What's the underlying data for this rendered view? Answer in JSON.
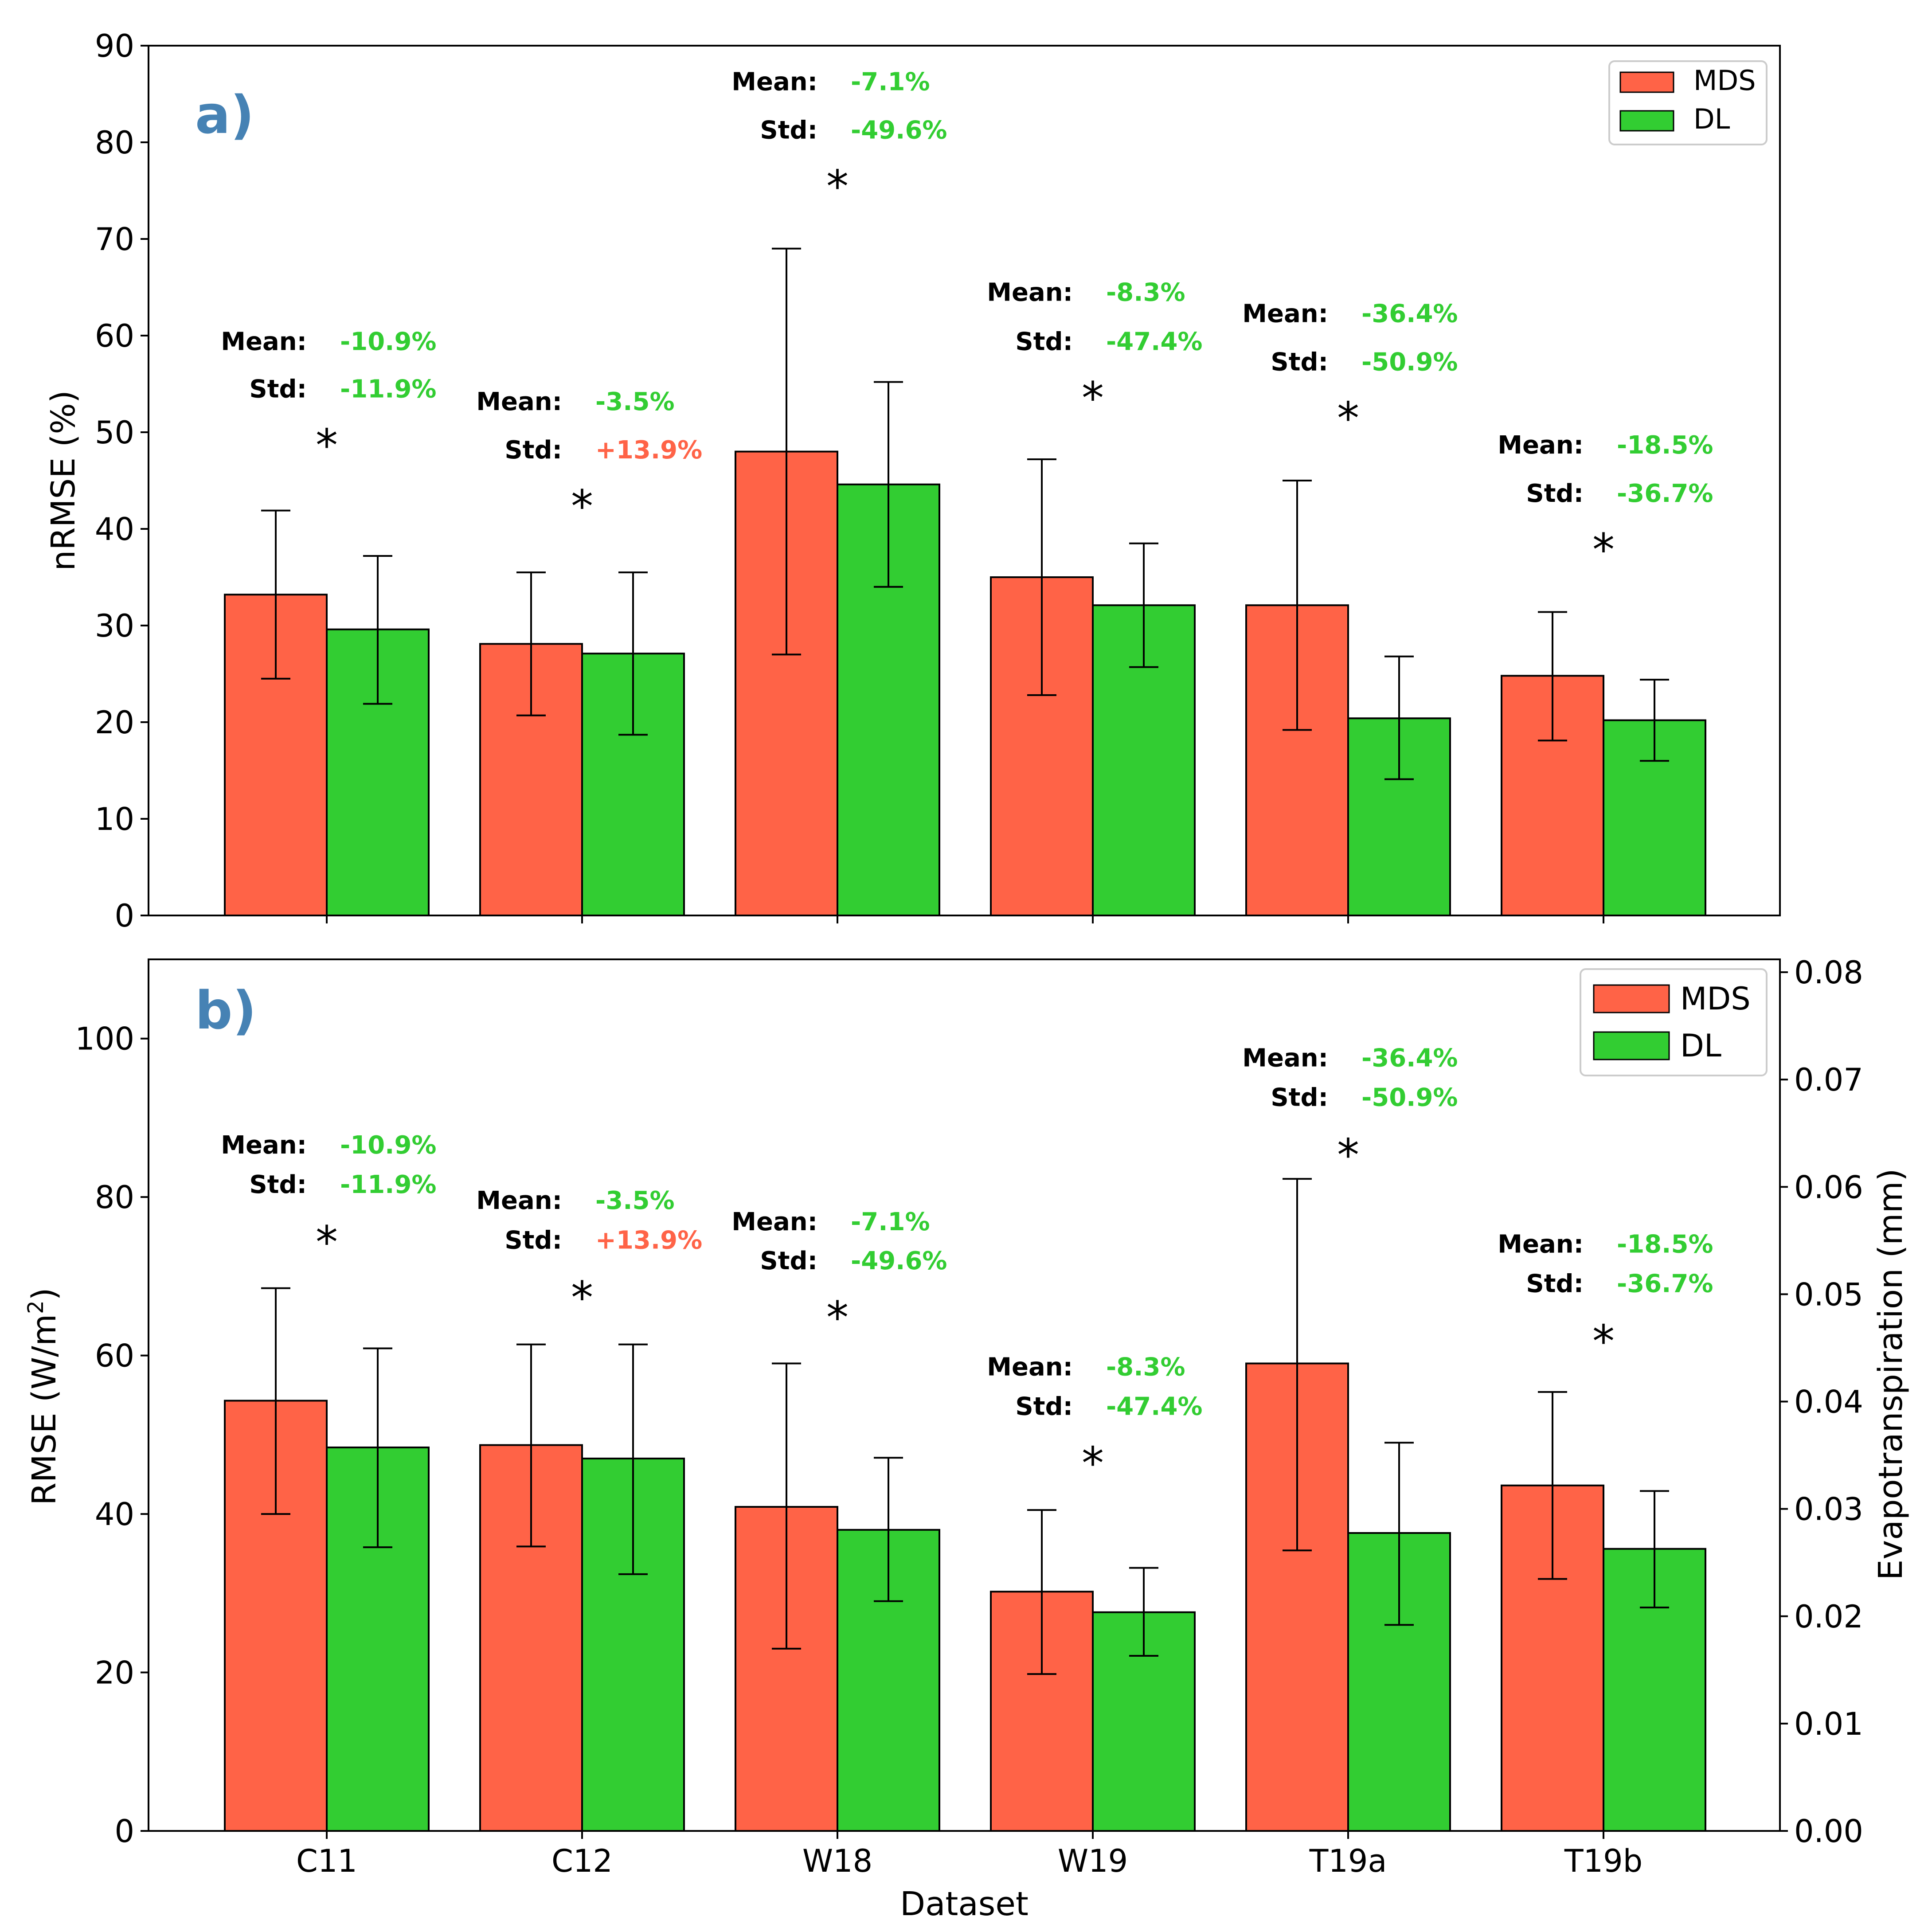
{
  "colors": {
    "mds": "#ff6347",
    "dl": "#32cd32",
    "panel_letter": "#4682b4",
    "neg": "#32cd32",
    "pos": "#ff6347"
  },
  "chart_data": [
    {
      "type": "bar",
      "panel": "a)",
      "categories": [
        "C11",
        "C12",
        "W18",
        "W19",
        "T19a",
        "T19b"
      ],
      "ylabel": "nRMSE (%)",
      "ylim": [
        0,
        90
      ],
      "yticks": [
        0,
        10,
        20,
        30,
        40,
        50,
        60,
        70,
        80,
        90
      ],
      "series": [
        {
          "name": "MDS",
          "values": [
            33.2,
            28.1,
            48.0,
            35.0,
            32.1,
            24.8
          ],
          "err_low": [
            24.5,
            20.7,
            27.0,
            22.8,
            19.2,
            18.1
          ],
          "err_high": [
            41.9,
            35.5,
            69.0,
            47.2,
            45.0,
            31.4
          ]
        },
        {
          "name": "DL",
          "values": [
            29.6,
            27.1,
            44.6,
            32.1,
            20.4,
            20.2
          ],
          "err_low": [
            21.9,
            18.7,
            34.0,
            25.7,
            14.1,
            16.0
          ],
          "err_high": [
            37.2,
            35.5,
            55.2,
            38.5,
            26.8,
            24.4
          ]
        }
      ],
      "annotations": [
        {
          "mean_label": "Mean:",
          "mean_value": "-10.9%",
          "std_label": "Std:",
          "std_value": "-11.9%",
          "star": "*",
          "std_sign": "neg",
          "y_mean": 58.5,
          "y_std": 53.6,
          "y_star": 48.8
        },
        {
          "mean_label": "Mean:",
          "mean_value": "-3.5%",
          "std_label": "Std:",
          "std_value": "+13.9%",
          "star": "*",
          "std_sign": "pos",
          "y_mean": 52.3,
          "y_std": 47.3,
          "y_star": 42.5
        },
        {
          "mean_label": "Mean:",
          "mean_value": "-7.1%",
          "std_label": "Std:",
          "std_value": "-49.6%",
          "star": "*",
          "std_sign": "neg",
          "y_mean": 85.4,
          "y_std": 80.4,
          "y_star": 75.6
        },
        {
          "mean_label": "Mean:",
          "mean_value": "-8.3%",
          "std_label": "Std:",
          "std_value": "-47.4%",
          "star": "*",
          "std_sign": "neg",
          "y_mean": 63.6,
          "y_std": 58.5,
          "y_star": 53.7
        },
        {
          "mean_label": "Mean:",
          "mean_value": "-36.4%",
          "std_label": "Std:",
          "std_value": "-50.9%",
          "star": "*",
          "std_sign": "neg",
          "y_mean": 61.4,
          "y_std": 56.4,
          "y_star": 51.6
        },
        {
          "mean_label": "Mean:",
          "mean_value": "-18.5%",
          "std_label": "Std:",
          "std_value": "-36.7%",
          "star": "*",
          "std_sign": "neg",
          "y_mean": 47.8,
          "y_std": 42.8,
          "y_star": 38.0
        }
      ],
      "legend": [
        "MDS",
        "DL"
      ],
      "legend_position": "top-right"
    },
    {
      "type": "bar",
      "panel": "b)",
      "categories": [
        "C11",
        "C12",
        "W18",
        "W19",
        "T19a",
        "T19b"
      ],
      "xlabel": "Dataset",
      "ylabel": "RMSE (W/m²)",
      "ylabel_main": "RMSE (W/m",
      "ylabel_sup": "2",
      "ylabel_end": ")",
      "ylim": [
        0,
        110
      ],
      "yticks": [
        0,
        20,
        40,
        60,
        80,
        100
      ],
      "y2label": "Evapotranspiration (mm)",
      "y2lim": [
        0,
        0.0812
      ],
      "y2ticks": [
        "0.00",
        "0.01",
        "0.02",
        "0.03",
        "0.04",
        "0.05",
        "0.06",
        "0.07",
        "0.08"
      ],
      "series": [
        {
          "name": "MDS",
          "values": [
            54.3,
            48.7,
            40.9,
            30.2,
            59.0,
            43.6
          ],
          "err_low": [
            40.0,
            35.9,
            23.0,
            19.8,
            35.4,
            31.8
          ],
          "err_high": [
            68.5,
            61.4,
            59.0,
            40.5,
            82.3,
            55.4
          ]
        },
        {
          "name": "DL",
          "values": [
            48.4,
            47.0,
            38.0,
            27.6,
            37.6,
            35.6
          ],
          "err_low": [
            35.8,
            32.4,
            29.0,
            22.1,
            26.0,
            28.2
          ],
          "err_high": [
            60.9,
            61.4,
            47.1,
            33.2,
            49.0,
            42.9
          ]
        }
      ],
      "annotations": [
        {
          "mean_label": "Mean:",
          "mean_value": "-10.9%",
          "std_label": "Std:",
          "std_value": "-11.9%",
          "star": "*",
          "std_sign": "neg",
          "y_mean": 85.5,
          "y_std": 80.5,
          "y_star": 74.5
        },
        {
          "mean_label": "Mean:",
          "mean_value": "-3.5%",
          "std_label": "Std:",
          "std_value": "+13.9%",
          "star": "*",
          "std_sign": "pos",
          "y_mean": 78.5,
          "y_std": 73.5,
          "y_star": 67.5
        },
        {
          "mean_label": "Mean:",
          "mean_value": "-7.1%",
          "std_label": "Std:",
          "std_value": "-49.6%",
          "star": "*",
          "std_sign": "neg",
          "y_mean": 75.8,
          "y_std": 70.9,
          "y_star": 65.0
        },
        {
          "mean_label": "Mean:",
          "mean_value": "-8.3%",
          "std_label": "Std:",
          "std_value": "-47.4%",
          "star": "*",
          "std_sign": "neg",
          "y_mean": 57.5,
          "y_std": 52.5,
          "y_star": 46.6
        },
        {
          "mean_label": "Mean:",
          "mean_value": "-36.4%",
          "std_label": "Std:",
          "std_value": "-50.9%",
          "star": "*",
          "std_sign": "neg",
          "y_mean": 96.5,
          "y_std": 91.5,
          "y_star": 85.5
        },
        {
          "mean_label": "Mean:",
          "mean_value": "-18.5%",
          "std_label": "Std:",
          "std_value": "-36.7%",
          "star": "*",
          "std_sign": "neg",
          "y_mean": 73.0,
          "y_std": 68.0,
          "y_star": 62.0
        }
      ],
      "legend": [
        "MDS",
        "DL"
      ],
      "legend_position": "top-right"
    }
  ]
}
